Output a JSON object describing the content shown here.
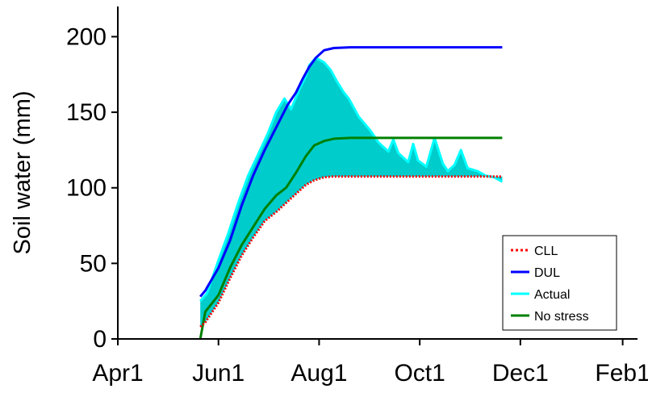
{
  "chart_data": {
    "type": "area",
    "title": "",
    "xlabel": "",
    "ylabel": "Soil water (mm)",
    "ylim": [
      0,
      220
    ],
    "y_ticks": [
      0,
      50,
      100,
      150,
      200
    ],
    "xlim": [
      "2000-04-01",
      "2001-02-10"
    ],
    "x_ticks": [
      {
        "label": "Apr1",
        "date": "2000-04-01"
      },
      {
        "label": "Jun1",
        "date": "2000-06-01"
      },
      {
        "label": "Aug1",
        "date": "2000-08-01"
      },
      {
        "label": "Oct1",
        "date": "2000-10-01"
      },
      {
        "label": "Dec1",
        "date": "2000-12-01"
      },
      {
        "label": "Feb1",
        "date": "2001-02-01"
      }
    ],
    "grid": false,
    "legend_position": "bottom-right",
    "shaded_band": {
      "from_series": "CLL",
      "to_series": "Actual",
      "color": "#00cccc"
    },
    "series": [
      {
        "name": "DUL",
        "color": "#0000ff",
        "style": "solid",
        "x": [
          "2000-05-21",
          "2000-05-24",
          "2000-06-01",
          "2000-06-08",
          "2000-06-15",
          "2000-06-22",
          "2000-06-29",
          "2000-07-06",
          "2000-07-13",
          "2000-07-18",
          "2000-07-22",
          "2000-07-26",
          "2000-07-30",
          "2000-08-04",
          "2000-08-10",
          "2000-08-20",
          "2000-09-05",
          "2000-10-01",
          "2000-11-01",
          "2000-11-20"
        ],
        "y": [
          28,
          32,
          47,
          65,
          88,
          108,
          125,
          140,
          155,
          163,
          172,
          180,
          186,
          191,
          192.5,
          193,
          193,
          193,
          193,
          193
        ]
      },
      {
        "name": "Actual",
        "color": "#00ffff",
        "style": "solid",
        "x": [
          "2000-05-21",
          "2000-05-25",
          "2000-06-01",
          "2000-06-07",
          "2000-06-13",
          "2000-06-19",
          "2000-06-25",
          "2000-07-01",
          "2000-07-06",
          "2000-07-11",
          "2000-07-15",
          "2000-07-20",
          "2000-07-24",
          "2000-07-26",
          "2000-07-30",
          "2000-08-04",
          "2000-08-08",
          "2000-08-12",
          "2000-08-16",
          "2000-08-19",
          "2000-08-25",
          "2000-09-01",
          "2000-09-06",
          "2000-09-12",
          "2000-09-15",
          "2000-09-18",
          "2000-09-24",
          "2000-09-27",
          "2000-09-30",
          "2000-10-05",
          "2000-10-10",
          "2000-10-15",
          "2000-10-18",
          "2000-10-22",
          "2000-10-26",
          "2000-10-30",
          "2000-11-05",
          "2000-11-10",
          "2000-11-15",
          "2000-11-20"
        ],
        "y": [
          25,
          30,
          52,
          70,
          90,
          108,
          122,
          136,
          150,
          159,
          152,
          165,
          174,
          181,
          186,
          183,
          178,
          170,
          163,
          159,
          147,
          138,
          130,
          124,
          132,
          123,
          117,
          129,
          118,
          114,
          133,
          116,
          111,
          115,
          125,
          113,
          111,
          108,
          107,
          104
        ]
      },
      {
        "name": "No stress",
        "color": "#008000",
        "style": "solid",
        "x": [
          "2000-05-21",
          "2000-05-24",
          "2000-06-01",
          "2000-06-08",
          "2000-06-15",
          "2000-06-22",
          "2000-06-29",
          "2000-07-06",
          "2000-07-12",
          "2000-07-18",
          "2000-07-24",
          "2000-07-29",
          "2000-08-04",
          "2000-08-10",
          "2000-08-20",
          "2000-09-10",
          "2000-10-15",
          "2000-11-20"
        ],
        "y": [
          0,
          18,
          29,
          47,
          62,
          74,
          86,
          95,
          100,
          110,
          121,
          128,
          131,
          132.5,
          133,
          133,
          133,
          133
        ]
      },
      {
        "name": "CLL",
        "color": "#ff0000",
        "style": "dotted",
        "x": [
          "2000-05-21",
          "2000-05-24",
          "2000-06-01",
          "2000-06-08",
          "2000-06-15",
          "2000-06-22",
          "2000-06-29",
          "2000-07-06",
          "2000-07-12",
          "2000-07-18",
          "2000-07-24",
          "2000-07-29",
          "2000-08-04",
          "2000-08-10",
          "2000-08-20",
          "2000-09-10",
          "2000-10-15",
          "2000-11-20"
        ],
        "y": [
          8,
          11,
          24,
          40,
          55,
          67,
          78,
          84,
          90,
          96,
          102,
          105,
          107,
          107.5,
          107.5,
          107.5,
          107.5,
          107.5
        ]
      }
    ]
  },
  "legend": {
    "items": [
      {
        "label": "CLL",
        "color": "#ff0000",
        "style": "dotted"
      },
      {
        "label": "DUL",
        "color": "#0000ff",
        "style": "solid"
      },
      {
        "label": "Actual",
        "color": "#00ffff",
        "style": "solid"
      },
      {
        "label": "No stress",
        "color": "#008000",
        "style": "solid"
      }
    ]
  }
}
